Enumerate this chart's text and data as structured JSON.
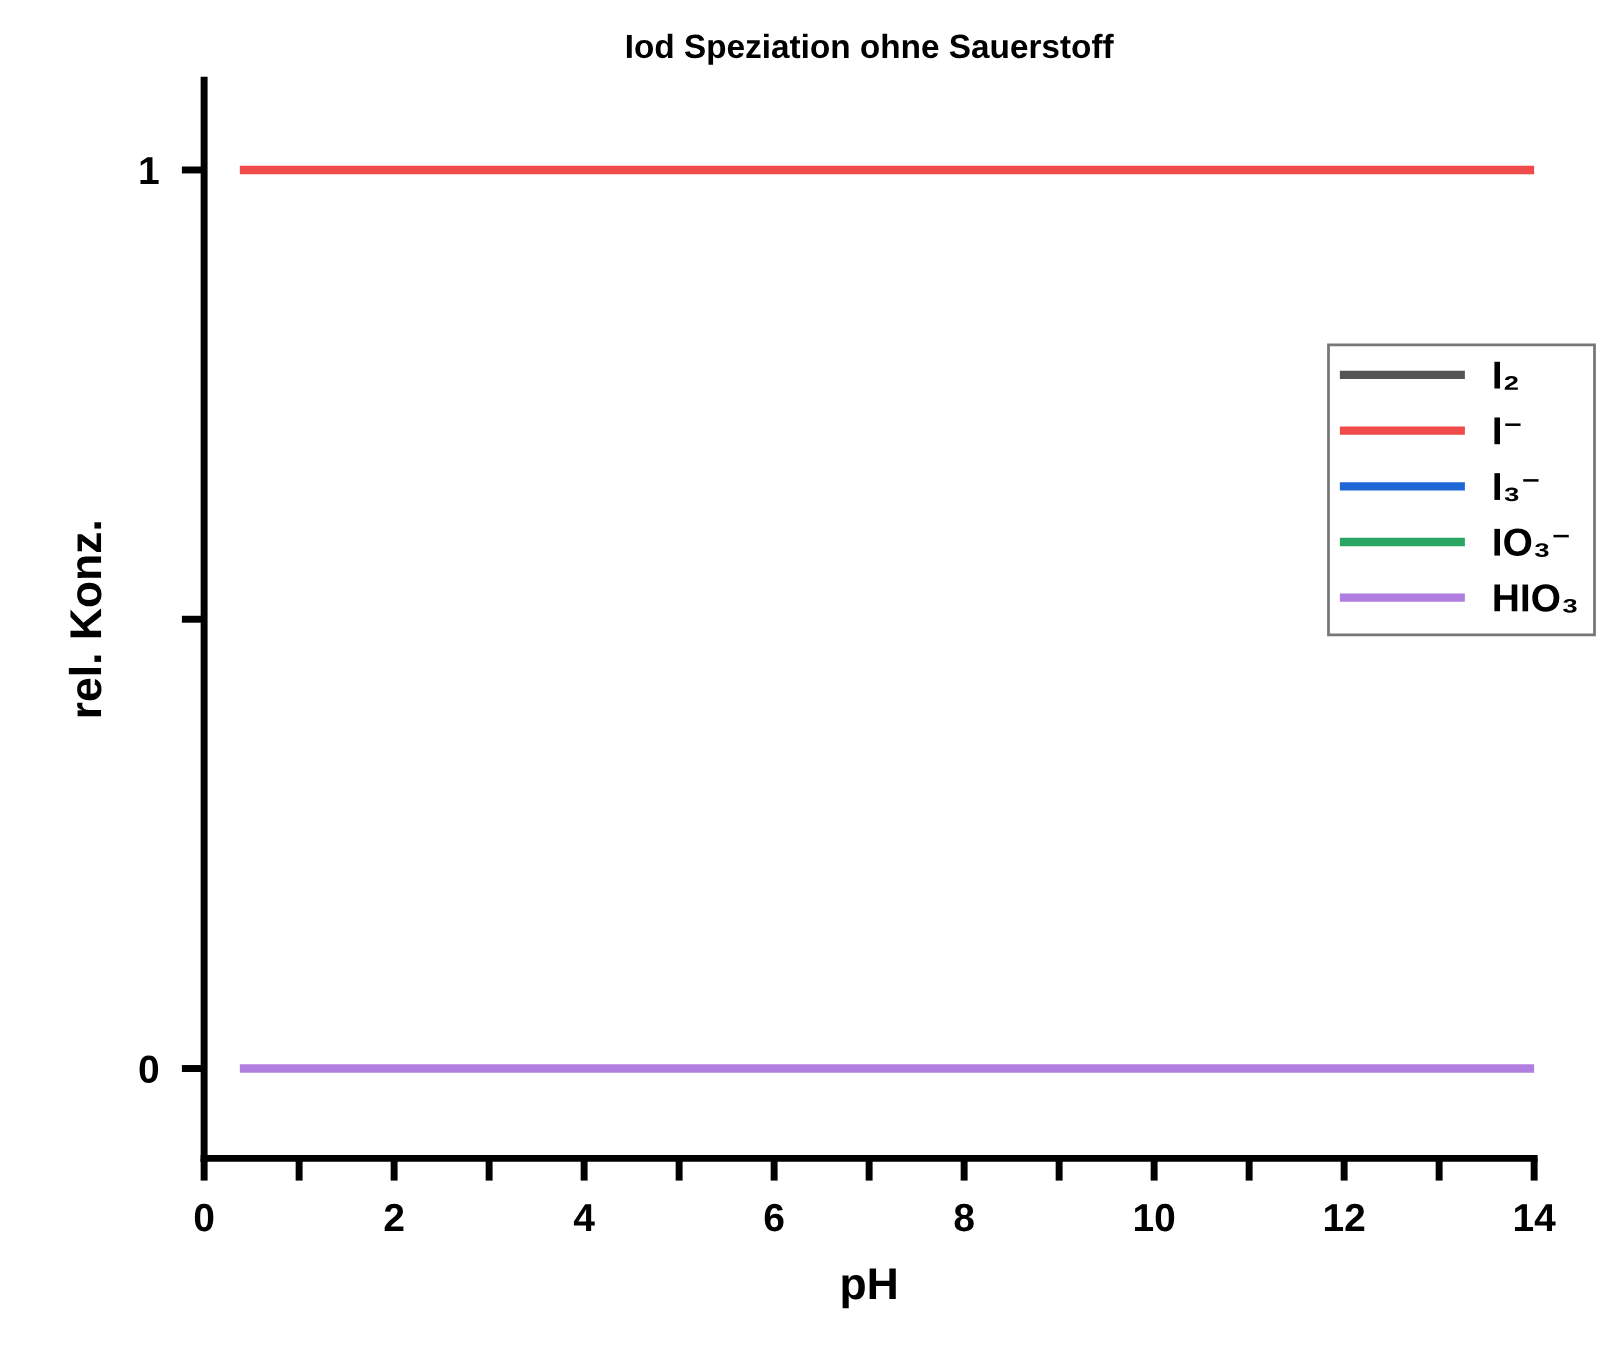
{
  "chart_data": {
    "type": "line",
    "title": "Iod Speziation ohne Sauerstoff",
    "xlabel": "pH",
    "ylabel": "rel. Konz.",
    "x": [
      0.42,
      14
    ],
    "series": [
      {
        "name": "I₂",
        "color": "#555555",
        "values": [
          null,
          null
        ]
      },
      {
        "name": "I⁻",
        "color": "#f04a4a",
        "values": [
          1,
          1
        ]
      },
      {
        "name": "I₃⁻",
        "color": "#1f66d6",
        "values": [
          null,
          null
        ]
      },
      {
        "name": "IO₃⁻",
        "color": "#2aa564",
        "values": [
          null,
          null
        ]
      },
      {
        "name": "HIO₃",
        "color": "#b07ee0",
        "values": [
          0,
          0
        ]
      }
    ],
    "xlim": [
      0,
      14
    ],
    "xticks": [
      0,
      {
        "value": 1,
        "label": null
      },
      2,
      {
        "value": 3,
        "label": null
      },
      4,
      {
        "value": 5,
        "label": null
      },
      6,
      {
        "value": 7,
        "label": null
      },
      8,
      {
        "value": 9,
        "label": null
      },
      10,
      {
        "value": 11,
        "label": null
      },
      12,
      {
        "value": 13,
        "label": null
      },
      14
    ],
    "ylim": [
      -0.1,
      1.1
    ],
    "yticks": [
      0,
      {
        "value": 0.5,
        "label": null
      },
      1
    ],
    "grid": false,
    "legend": "right",
    "marker": "none",
    "line_style": "solid"
  }
}
